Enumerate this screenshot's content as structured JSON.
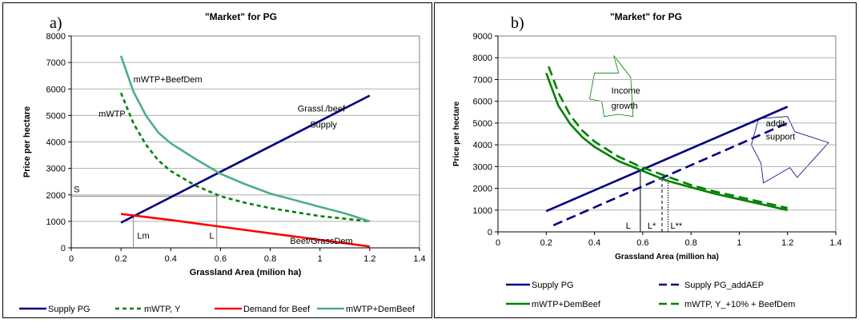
{
  "colors": {
    "supply": "#000080",
    "green_dash": "#008000",
    "beef": "#ff0000",
    "mwtp_beef_a": "#4caf84",
    "green_b": "#008000",
    "annotation_line": "#808080"
  },
  "chart_data": [
    {
      "type": "line",
      "panel_letter": "a)",
      "title": "\"Market\" for PG",
      "xlabel": "Grassland Area (milion ha)",
      "ylabel": "Price per hectare",
      "xlim": [
        0,
        1.4
      ],
      "ylim": [
        0,
        8000
      ],
      "x_ticks": [
        "0",
        "0.2",
        "0.4",
        "0.6",
        "0.8",
        "1",
        "1.2",
        "1.4"
      ],
      "y_ticks": [
        "0",
        "1000",
        "2000",
        "3000",
        "4000",
        "5000",
        "6000",
        "7000",
        "8000"
      ],
      "grid": true,
      "legend_position": "bottom",
      "series": [
        {
          "name": "Supply PG",
          "style": "solid",
          "color": "#000080",
          "x": [
            0.2,
            1.2
          ],
          "y": [
            950,
            5750
          ]
        },
        {
          "name": "mWTP, Y",
          "style": "dashed",
          "color": "#008000",
          "x": [
            0.2,
            0.25,
            0.3,
            0.35,
            0.4,
            0.5,
            0.6,
            0.7,
            0.8,
            0.9,
            1.0,
            1.1,
            1.2
          ],
          "y": [
            5850,
            4700,
            3900,
            3300,
            2900,
            2350,
            1950,
            1700,
            1500,
            1350,
            1200,
            1100,
            1000
          ]
        },
        {
          "name": "Demand for Beef",
          "style": "solid",
          "color": "#ff0000",
          "x": [
            0.2,
            0.4,
            0.6,
            0.8,
            1.0,
            1.2
          ],
          "y": [
            1280,
            1050,
            800,
            550,
            300,
            50
          ]
        },
        {
          "name": "mWTP+DemBeef",
          "style": "solid",
          "color": "#4caf84",
          "x": [
            0.2,
            0.25,
            0.3,
            0.35,
            0.4,
            0.5,
            0.6,
            0.7,
            0.8,
            0.9,
            1.0,
            1.1,
            1.2
          ],
          "y": [
            7250,
            5900,
            5000,
            4350,
            3950,
            3350,
            2800,
            2400,
            2050,
            1800,
            1550,
            1300,
            1000
          ]
        }
      ],
      "annotations": [
        {
          "text": "mWTP+BeefDem",
          "x": 0.25,
          "y": 6250
        },
        {
          "text": "mWTP",
          "x": 0.11,
          "y": 4950
        },
        {
          "text": "Grassl./beef",
          "x": 0.91,
          "y": 5150
        },
        {
          "text": "Supply",
          "x": 0.96,
          "y": 4550
        },
        {
          "text": "Beef/GrassDem",
          "x": 0.88,
          "y": 150
        },
        {
          "text": "S",
          "x": 0.01,
          "y": 2100
        },
        {
          "text": "Lm",
          "x": 0.265,
          "y": 350
        },
        {
          "text": "L",
          "x": 0.555,
          "y": 350
        }
      ],
      "guides": [
        {
          "x": [
            0,
            0.585
          ],
          "y": [
            1950,
            1950
          ]
        },
        {
          "x": [
            0.585,
            0.585
          ],
          "y": [
            0,
            1950
          ]
        },
        {
          "x": [
            0.25,
            0.25
          ],
          "y": [
            0,
            1200
          ]
        }
      ]
    },
    {
      "type": "line",
      "panel_letter": "b)",
      "title": "\"Market\" for PG",
      "xlabel": "Grassland Area (million ha)",
      "ylabel": "Price per hectare",
      "xlim": [
        0,
        1.4
      ],
      "ylim": [
        0,
        9000
      ],
      "x_ticks": [
        "0",
        "0.2",
        "0.4",
        "0.6",
        "0.8",
        "1",
        "1.2",
        "1.4"
      ],
      "y_ticks": [
        "0",
        "1000",
        "2000",
        "3000",
        "4000",
        "5000",
        "6000",
        "7000",
        "8000",
        "9000"
      ],
      "grid": true,
      "legend_position": "bottom",
      "series": [
        {
          "name": "Supply PG",
          "style": "solid",
          "color": "#000080",
          "x": [
            0.2,
            1.2
          ],
          "y": [
            950,
            5750
          ]
        },
        {
          "name": "Supply PG_addAEP",
          "style": "longdash",
          "color": "#000080",
          "x": [
            0.23,
            1.2
          ],
          "y": [
            300,
            5000
          ]
        },
        {
          "name": "mWTP+DemBeef",
          "style": "solid",
          "color": "#008000",
          "x": [
            0.2,
            0.25,
            0.3,
            0.35,
            0.4,
            0.5,
            0.6,
            0.7,
            0.8,
            0.9,
            1.0,
            1.1,
            1.2
          ],
          "y": [
            7300,
            5800,
            4950,
            4350,
            3900,
            3250,
            2800,
            2350,
            2050,
            1750,
            1500,
            1250,
            1000
          ]
        },
        {
          "name": "mWTP, Y_+10% + BeefDem",
          "style": "longdash",
          "color": "#008000",
          "x": [
            0.21,
            0.25,
            0.3,
            0.35,
            0.4,
            0.5,
            0.6,
            0.7,
            0.8,
            0.9,
            1.0,
            1.1,
            1.2
          ],
          "y": [
            7600,
            6400,
            5350,
            4650,
            4150,
            3450,
            2950,
            2550,
            2150,
            1850,
            1600,
            1350,
            1100
          ]
        }
      ],
      "annotations": [
        {
          "text": "Income",
          "x": 0.47,
          "y": 6350
        },
        {
          "text": "growth",
          "x": 0.47,
          "y": 5650
        },
        {
          "text": "addit.",
          "x": 1.11,
          "y": 4850
        },
        {
          "text": "support",
          "x": 1.11,
          "y": 4250
        },
        {
          "text": "L",
          "x": 0.53,
          "y": 150
        },
        {
          "text": "L*",
          "x": 0.62,
          "y": 150
        },
        {
          "text": "L**",
          "x": 0.715,
          "y": 150
        }
      ],
      "guides": [
        {
          "x": [
            0.59,
            0.59
          ],
          "y": [
            0,
            2800
          ],
          "style": "solid"
        },
        {
          "x": [
            0.68,
            0.68
          ],
          "y": [
            0,
            2450
          ],
          "style": "dashed"
        },
        {
          "x": [
            0.705,
            0.705
          ],
          "y": [
            0,
            2600
          ],
          "style": "dotted"
        }
      ]
    }
  ]
}
